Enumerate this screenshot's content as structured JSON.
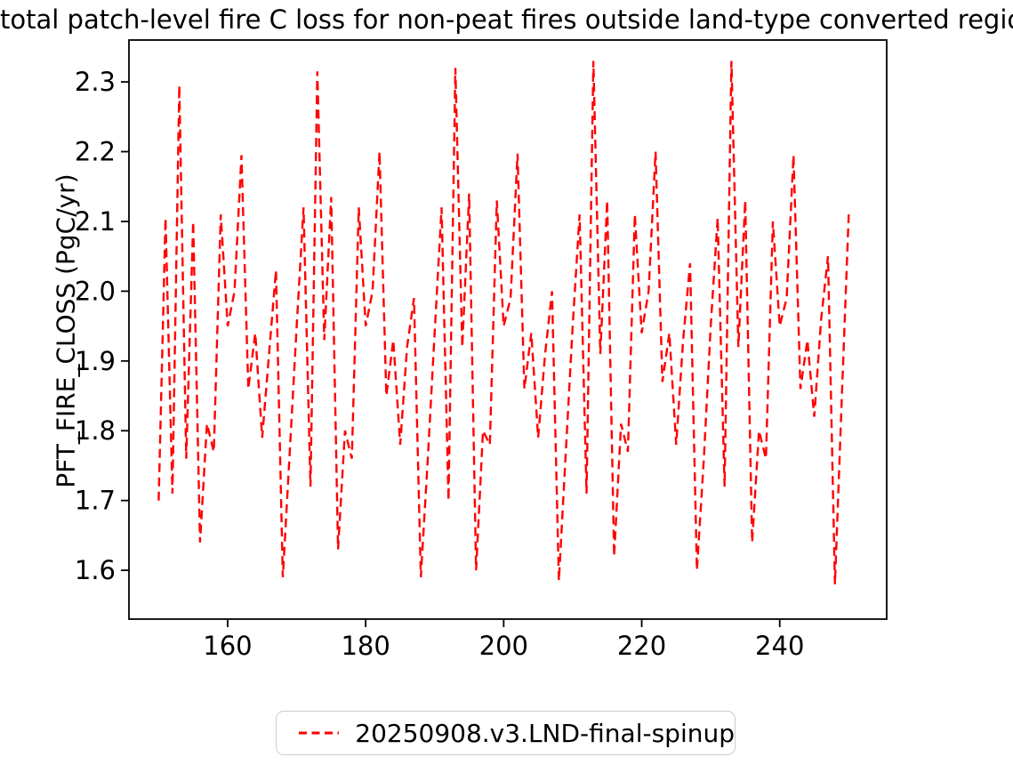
{
  "title": "total patch-level fire C loss for non-peat fires outside land-type converted region",
  "legend": {
    "label": "20250908.v3.LND-final-spinup"
  },
  "colors": {
    "series": "#ff0000",
    "axis": "#000000",
    "text": "#000000",
    "legend_border": "#cccccc",
    "background": "#ffffff"
  },
  "chart_data": {
    "type": "line",
    "title": "total patch-level fire C loss for non-peat fires outside land-type converted region",
    "xlabel": "",
    "ylabel": "PFT_FIRE_CLOSS (PgC/yr)",
    "xlim": [
      145.7,
      255.5
    ],
    "ylim": [
      1.53,
      2.36
    ],
    "xticks": [
      160,
      180,
      200,
      220,
      240
    ],
    "yticks": [
      1.6,
      1.7,
      1.8,
      1.9,
      2.0,
      2.1,
      2.2,
      2.3
    ],
    "grid": false,
    "legend_position": "lower center, outside below axes",
    "series": [
      {
        "name": "20250908.v3.LND-final-spinup",
        "color": "#ff0000",
        "linestyle": "dashed",
        "x": [
          150,
          151,
          152,
          153,
          154,
          155,
          156,
          157,
          158,
          159,
          160,
          161,
          162,
          163,
          164,
          165,
          166,
          167,
          168,
          169,
          170,
          171,
          172,
          173,
          174,
          175,
          176,
          177,
          178,
          179,
          180,
          181,
          182,
          183,
          184,
          185,
          186,
          187,
          188,
          189,
          190,
          191,
          192,
          193,
          194,
          195,
          196,
          197,
          198,
          199,
          200,
          201,
          202,
          203,
          204,
          205,
          206,
          207,
          208,
          209,
          210,
          211,
          212,
          213,
          214,
          215,
          216,
          217,
          218,
          219,
          220,
          221,
          222,
          223,
          224,
          225,
          226,
          227,
          228,
          229,
          230,
          231,
          232,
          233,
          234,
          235,
          236,
          237,
          238,
          239,
          240,
          241,
          242,
          243,
          244,
          245,
          246,
          247,
          248,
          249,
          250
        ],
        "values": [
          1.7,
          2.105,
          1.71,
          2.295,
          1.76,
          2.1,
          1.64,
          1.81,
          1.77,
          2.11,
          1.95,
          2.0,
          2.195,
          1.86,
          1.94,
          1.79,
          1.91,
          2.03,
          1.59,
          1.77,
          1.95,
          2.12,
          1.72,
          2.315,
          1.93,
          2.135,
          1.63,
          1.8,
          1.76,
          2.12,
          1.95,
          2.0,
          2.2,
          1.85,
          1.93,
          1.78,
          1.92,
          1.99,
          1.59,
          1.76,
          1.94,
          2.12,
          1.7,
          2.32,
          1.92,
          2.14,
          1.6,
          1.8,
          1.78,
          2.13,
          1.95,
          1.99,
          2.197,
          1.86,
          1.94,
          1.79,
          1.91,
          2.0,
          1.585,
          1.77,
          1.95,
          2.11,
          1.71,
          2.33,
          1.91,
          2.13,
          1.62,
          1.81,
          1.77,
          2.11,
          1.94,
          2.0,
          2.2,
          1.87,
          1.94,
          1.78,
          1.93,
          2.04,
          1.6,
          1.76,
          1.95,
          2.105,
          1.72,
          2.33,
          1.92,
          2.13,
          1.64,
          1.8,
          1.76,
          2.1,
          1.95,
          1.99,
          2.195,
          1.86,
          1.93,
          1.82,
          1.96,
          2.05,
          1.58,
          1.85,
          2.11
        ]
      }
    ]
  }
}
